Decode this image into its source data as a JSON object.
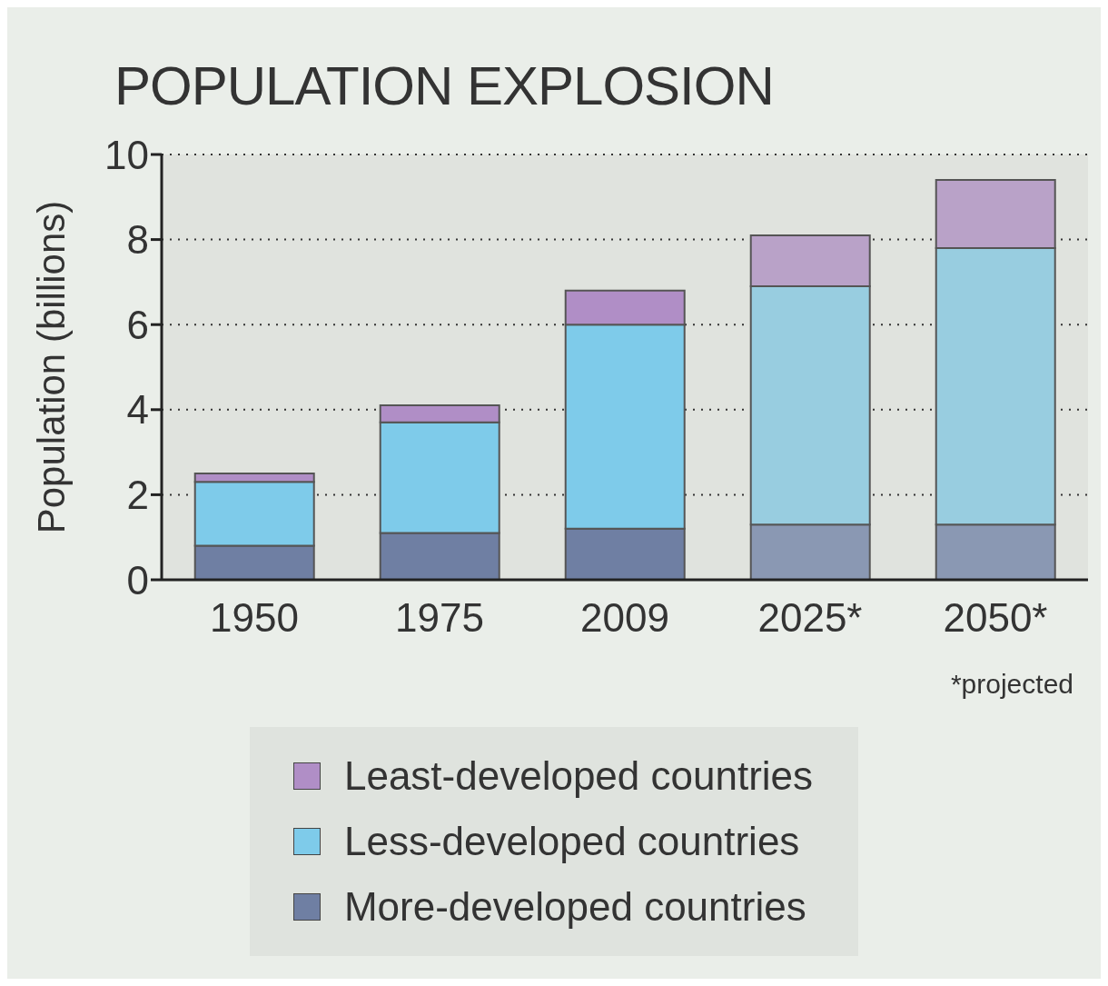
{
  "chart_data": {
    "type": "bar",
    "title": "POPULATION EXPLOSION",
    "ylabel": "Population (billions)",
    "categories": [
      "1950",
      "1975",
      "2009",
      "2025*",
      "2050*"
    ],
    "stacked": true,
    "series": [
      {
        "name": "More-developed countries",
        "color": "#6f7fa3",
        "colors": [
          "#6f7fa3",
          "#6f7fa3",
          "#6f7fa3",
          "#8a98b3",
          "#8a98b3"
        ],
        "values": [
          0.8,
          1.1,
          1.2,
          1.3,
          1.3
        ]
      },
      {
        "name": "Less-developed countries",
        "color": "#7ecbea",
        "colors": [
          "#7ecbea",
          "#7ecbea",
          "#7ecbea",
          "#98cde0",
          "#98cde0"
        ],
        "values": [
          1.5,
          2.6,
          4.8,
          5.6,
          6.5
        ]
      },
      {
        "name": "Least-developed countries",
        "color": "#b08ec6",
        "colors": [
          "#b08ec6",
          "#b08ec6",
          "#b08ec6",
          "#b9a2c8",
          "#b9a2c8"
        ],
        "values": [
          0.2,
          0.4,
          0.8,
          1.2,
          1.6
        ]
      }
    ],
    "ylim": [
      0,
      10
    ],
    "yticks": [
      0,
      2,
      4,
      6,
      8,
      10
    ],
    "grid": "y",
    "legend": "bottom",
    "annotations": [
      "*projected"
    ]
  }
}
